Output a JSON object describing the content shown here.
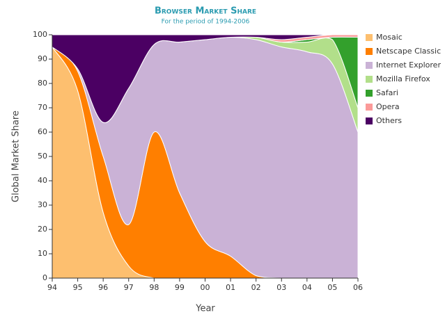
{
  "chart_data": {
    "type": "stacked-area",
    "title": "Browser Market Share",
    "subtitle": "For the period of 1994-2006",
    "x_label": "Year",
    "y_label": "Global Market Share",
    "categories": [
      "94",
      "95",
      "96",
      "97",
      "98",
      "99",
      "00",
      "01",
      "02",
      "03",
      "04",
      "05",
      "06"
    ],
    "ylim": [
      0,
      100
    ],
    "yticks": [
      0,
      10,
      20,
      30,
      40,
      50,
      60,
      70,
      80,
      90,
      100
    ],
    "grid": true,
    "legend": "right",
    "series": [
      {
        "name": "Mosaic",
        "color": "#fdbf6f",
        "values": [
          95,
          77,
          27,
          5,
          0,
          0,
          0,
          0,
          0,
          0,
          0,
          0,
          0
        ]
      },
      {
        "name": "Netscape Classic",
        "color": "#ff7f00",
        "values": [
          0,
          8,
          23,
          17,
          60,
          35,
          15,
          9,
          1,
          0,
          0,
          0,
          0
        ]
      },
      {
        "name": "Internet Explorer",
        "color": "#cab2d6",
        "values": [
          0,
          1,
          14,
          56,
          36,
          62,
          83,
          90,
          97,
          95,
          93,
          88,
          60
        ]
      },
      {
        "name": "Mozilla Firefox",
        "color": "#b2df8a",
        "values": [
          0,
          0,
          0,
          0,
          0,
          0,
          0,
          0,
          1,
          2,
          4,
          10,
          10
        ]
      },
      {
        "name": "Safari",
        "color": "#33a02c",
        "values": [
          0,
          0,
          0,
          0,
          0,
          0,
          0,
          0,
          0,
          0,
          1,
          1,
          29
        ]
      },
      {
        "name": "Opera",
        "color": "#fb9a99",
        "values": [
          0,
          0,
          0,
          0,
          0,
          0,
          0,
          0,
          0,
          1,
          1,
          1,
          1
        ]
      },
      {
        "name": "Others",
        "color": "#4b0063",
        "values": [
          5,
          14,
          36,
          22,
          4,
          3,
          2,
          1,
          1,
          2,
          1,
          0,
          0
        ]
      }
    ]
  }
}
